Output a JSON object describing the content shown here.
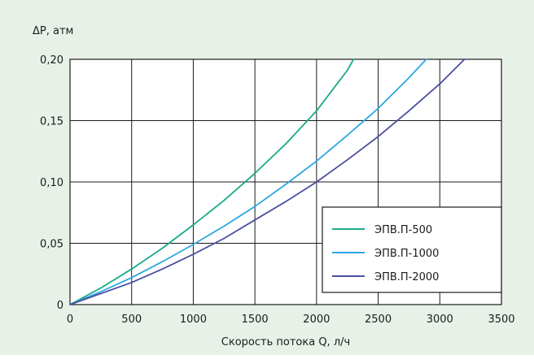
{
  "chart_data": {
    "type": "line",
    "ylabel": "ΔP, атм",
    "xlabel": "Скорость потока Q, л/ч",
    "xlim": [
      0,
      3500
    ],
    "ylim": [
      0,
      0.2
    ],
    "x_ticks": [
      "0",
      "500",
      "1000",
      "1500",
      "2000",
      "2500",
      "3000",
      "3500"
    ],
    "y_ticks": [
      "0",
      "0,05",
      "0,10",
      "0,15",
      "0,20"
    ],
    "grid": true,
    "legend_position": "bottom-right",
    "series": [
      {
        "name": "ЭПВ.П-500",
        "color": "#1aaa8a",
        "x": [
          0,
          250,
          500,
          750,
          1000,
          1250,
          1500,
          1750,
          2000,
          2250,
          2300
        ],
        "y": [
          0,
          0.0135,
          0.029,
          0.046,
          0.065,
          0.085,
          0.107,
          0.131,
          0.158,
          0.191,
          0.2
        ]
      },
      {
        "name": "ЭПВ.П-1000",
        "color": "#2aa8e0",
        "x": [
          0,
          250,
          500,
          750,
          1000,
          1250,
          1500,
          1750,
          2000,
          2250,
          2500,
          2750,
          2890
        ],
        "y": [
          0,
          0.0105,
          0.022,
          0.035,
          0.049,
          0.064,
          0.08,
          0.098,
          0.117,
          0.138,
          0.16,
          0.185,
          0.2
        ]
      },
      {
        "name": "ЭПВ.П-2000",
        "color": "#4a4fa0",
        "x": [
          0,
          250,
          500,
          750,
          1000,
          1250,
          1500,
          1750,
          2000,
          2250,
          2500,
          2750,
          3000,
          3200
        ],
        "y": [
          0,
          0.009,
          0.018,
          0.029,
          0.041,
          0.054,
          0.069,
          0.084,
          0.1,
          0.118,
          0.137,
          0.158,
          0.18,
          0.2
        ]
      }
    ]
  }
}
